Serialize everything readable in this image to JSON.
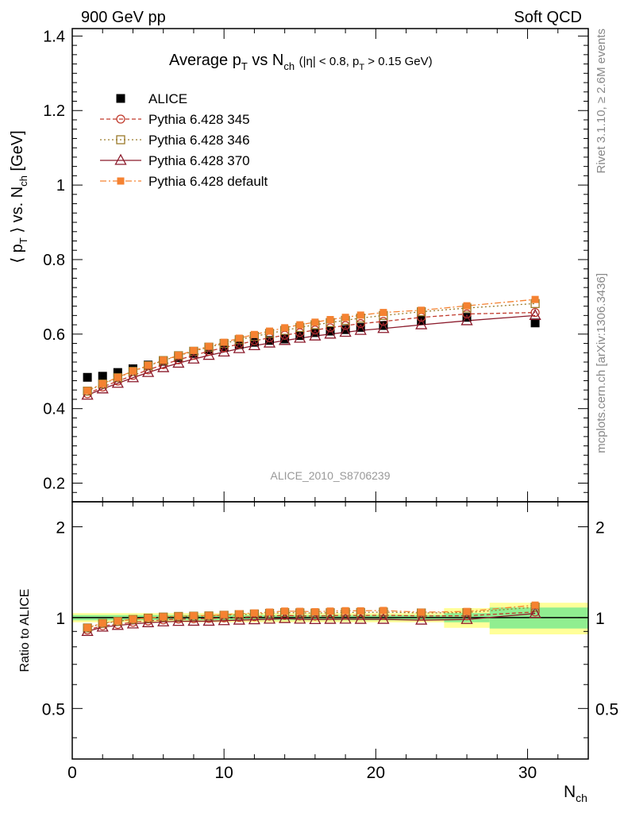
{
  "header": {
    "left": "900 GeV pp",
    "right": "Soft QCD"
  },
  "side_labels": {
    "rivet": "Rivet 3.1.10, ≥ 2.6M events",
    "mcplots": "mcplots.cern.ch [arXiv:1306.3436]"
  },
  "watermark": "ALICE_2010_S8706239",
  "colors": {
    "alice": "#000000",
    "p345": "#c0392b",
    "p346": "#9a7a2a",
    "p370": "#8b1a2b",
    "pdefault": "#f58231",
    "band_green": "#90ee90",
    "band_yellow": "#ffff99"
  },
  "chart_data": [
    {
      "type": "scatter",
      "title": "Average p_T vs N_ch (|η| < 0.8, p_T > 0.15 GeV)",
      "title_main": "Average p",
      "title_sub_T": "T",
      "title_vs": "vs N",
      "title_sub_ch": "ch",
      "title_cuts_1": "(|η| < 0.8, p",
      "title_cuts_sub": "T",
      "title_cuts_2": "> 0.15 GeV)",
      "ylabel": "⟨ pT ⟩ vs. Nch [GeV]",
      "ylabel_parts": {
        "a": "⟨ p",
        "b": "T",
        "c": "⟩ vs. N",
        "d": "ch",
        "e": "[GeV]"
      },
      "xlim": [
        0,
        34
      ],
      "ylim": [
        0.15,
        1.42
      ],
      "yticks": [
        0.2,
        0.4,
        0.6,
        0.8,
        1,
        1.2,
        1.4
      ],
      "ytick_labels": [
        "0.2",
        "0.4",
        "0.6",
        "0.8",
        "1",
        "1.2",
        "1.4"
      ],
      "legend_position": "top-left",
      "series": [
        {
          "key": "alice",
          "name": "ALICE",
          "x": [
            1,
            2,
            3,
            4,
            5,
            6,
            7,
            8,
            9,
            10,
            11,
            12,
            13,
            14,
            15,
            16,
            17,
            18,
            19,
            20.5,
            23,
            26,
            30.5
          ],
          "y": [
            0.484,
            0.487,
            0.497,
            0.507,
            0.517,
            0.527,
            0.537,
            0.548,
            0.558,
            0.565,
            0.572,
            0.578,
            0.583,
            0.587,
            0.596,
            0.604,
            0.608,
            0.612,
            0.618,
            0.623,
            0.637,
            0.645,
            0.63
          ]
        },
        {
          "key": "p345",
          "name": "Pythia 6.428 345",
          "x": [
            1,
            2,
            3,
            4,
            5,
            6,
            7,
            8,
            9,
            10,
            11,
            12,
            13,
            14,
            15,
            16,
            17,
            18,
            19,
            20.5,
            23,
            26,
            30.5
          ],
          "y": [
            0.44,
            0.458,
            0.474,
            0.489,
            0.504,
            0.518,
            0.531,
            0.543,
            0.554,
            0.564,
            0.573,
            0.582,
            0.59,
            0.597,
            0.604,
            0.611,
            0.617,
            0.623,
            0.628,
            0.634,
            0.645,
            0.654,
            0.658
          ]
        },
        {
          "key": "p346",
          "name": "Pythia 6.428 346",
          "x": [
            1,
            2,
            3,
            4,
            5,
            6,
            7,
            8,
            9,
            10,
            11,
            12,
            13,
            14,
            15,
            16,
            17,
            18,
            19,
            20.5,
            23,
            26,
            30.5
          ],
          "y": [
            0.447,
            0.466,
            0.483,
            0.5,
            0.515,
            0.529,
            0.542,
            0.554,
            0.565,
            0.575,
            0.585,
            0.594,
            0.602,
            0.61,
            0.618,
            0.625,
            0.631,
            0.637,
            0.643,
            0.65,
            0.66,
            0.67,
            0.682
          ]
        },
        {
          "key": "p370",
          "name": "Pythia 6.428 370",
          "x": [
            1,
            2,
            3,
            4,
            5,
            6,
            7,
            8,
            9,
            10,
            11,
            12,
            13,
            14,
            15,
            16,
            17,
            18,
            19,
            20.5,
            23,
            26,
            30.5
          ],
          "y": [
            0.436,
            0.453,
            0.468,
            0.483,
            0.497,
            0.51,
            0.522,
            0.533,
            0.543,
            0.552,
            0.561,
            0.569,
            0.576,
            0.583,
            0.589,
            0.595,
            0.6,
            0.605,
            0.61,
            0.615,
            0.625,
            0.636,
            0.65
          ]
        },
        {
          "key": "pdefault",
          "name": "Pythia 6.428 default",
          "x": [
            1,
            2,
            3,
            4,
            5,
            6,
            7,
            8,
            9,
            10,
            11,
            12,
            13,
            14,
            15,
            16,
            17,
            18,
            19,
            20.5,
            23,
            26,
            30.5
          ],
          "y": [
            0.448,
            0.467,
            0.484,
            0.501,
            0.516,
            0.53,
            0.543,
            0.556,
            0.567,
            0.578,
            0.589,
            0.599,
            0.608,
            0.617,
            0.625,
            0.632,
            0.639,
            0.645,
            0.651,
            0.658,
            0.664,
            0.676,
            0.693
          ]
        }
      ]
    },
    {
      "type": "scatter",
      "ylabel": "Ratio to ALICE",
      "xlabel": "N",
      "xlabel_sub": "ch",
      "xlim": [
        0,
        34
      ],
      "ylim": [
        0.34,
        2.42
      ],
      "yticks": [
        0.5,
        1,
        2
      ],
      "ytick_labels": [
        "0.5",
        "1",
        "2"
      ],
      "xticks": [
        0,
        10,
        20,
        30
      ],
      "xtick_labels": [
        "0",
        "10",
        "20",
        "30"
      ],
      "bands": {
        "x_edges": [
          0,
          24.5,
          27.5,
          34
        ],
        "green_halfwidth": [
          0.02,
          0.035,
          0.08
        ],
        "yellow_halfwidth": [
          0.035,
          0.075,
          0.12
        ]
      },
      "series": [
        {
          "key": "p345",
          "x": [
            1,
            2,
            3,
            4,
            5,
            6,
            7,
            8,
            9,
            10,
            11,
            12,
            13,
            14,
            15,
            16,
            17,
            18,
            19,
            20.5,
            23,
            26,
            30.5
          ],
          "y": [
            0.91,
            0.94,
            0.95,
            0.965,
            0.975,
            0.983,
            0.989,
            0.991,
            0.993,
            0.998,
            1.002,
            1.007,
            1.012,
            1.017,
            1.013,
            1.012,
            1.015,
            1.018,
            1.016,
            1.018,
            1.013,
            1.014,
            1.044
          ]
        },
        {
          "key": "p346",
          "x": [
            1,
            2,
            3,
            4,
            5,
            6,
            7,
            8,
            9,
            10,
            11,
            12,
            13,
            14,
            15,
            16,
            17,
            18,
            19,
            20.5,
            23,
            26,
            30.5
          ],
          "y": [
            0.924,
            0.957,
            0.972,
            0.986,
            0.996,
            1.004,
            1.009,
            1.011,
            1.013,
            1.018,
            1.023,
            1.028,
            1.033,
            1.039,
            1.037,
            1.035,
            1.038,
            1.041,
            1.04,
            1.043,
            1.036,
            1.039,
            1.083
          ]
        },
        {
          "key": "p370",
          "x": [
            1,
            2,
            3,
            4,
            5,
            6,
            7,
            8,
            9,
            10,
            11,
            12,
            13,
            14,
            15,
            16,
            17,
            18,
            19,
            20.5,
            23,
            26,
            30.5
          ],
          "y": [
            0.9,
            0.93,
            0.942,
            0.953,
            0.962,
            0.968,
            0.972,
            0.973,
            0.973,
            0.977,
            0.981,
            0.984,
            0.988,
            0.993,
            0.988,
            0.985,
            0.987,
            0.988,
            0.987,
            0.987,
            0.981,
            0.986,
            1.032
          ]
        },
        {
          "key": "pdefault",
          "x": [
            1,
            2,
            3,
            4,
            5,
            6,
            7,
            8,
            9,
            10,
            11,
            12,
            13,
            14,
            15,
            16,
            17,
            18,
            19,
            20.5,
            23,
            26,
            30.5
          ],
          "y": [
            0.926,
            0.959,
            0.974,
            0.988,
            0.998,
            1.006,
            1.011,
            1.015,
            1.016,
            1.023,
            1.03,
            1.036,
            1.043,
            1.051,
            1.049,
            1.046,
            1.051,
            1.054,
            1.053,
            1.056,
            1.042,
            1.048,
            1.1
          ]
        }
      ]
    }
  ]
}
